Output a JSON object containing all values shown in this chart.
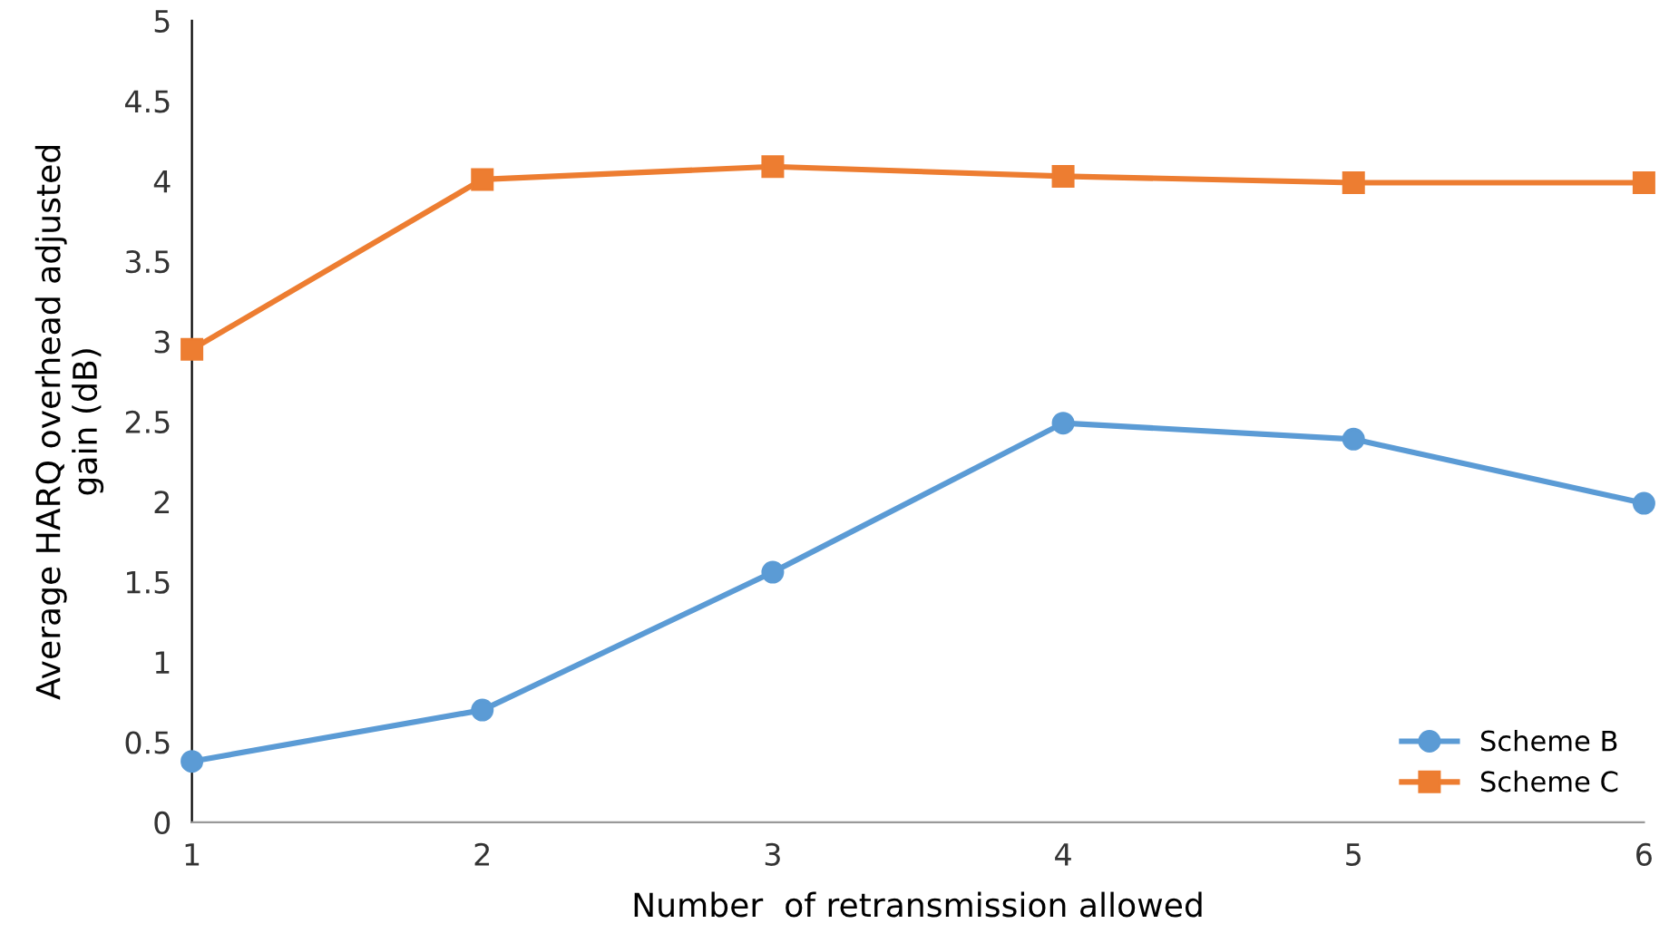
{
  "chart_data": {
    "type": "line",
    "xlabel": "Number  of retransmission allowed",
    "ylabel": "Average HARQ overhead adjusted\ngain (dB)",
    "x": [
      1,
      2,
      3,
      4,
      5,
      6
    ],
    "series": [
      {
        "name": "Scheme B",
        "color": "#5b9bd5",
        "marker": "circle",
        "values": [
          0.38,
          0.7,
          1.56,
          2.49,
          2.39,
          1.99
        ]
      },
      {
        "name": "Scheme C",
        "color": "#ed7d31",
        "marker": "square",
        "values": [
          2.95,
          4.01,
          4.09,
          4.03,
          3.99,
          3.99
        ]
      }
    ],
    "xlim": [
      1,
      6
    ],
    "xticks": [
      1,
      2,
      3,
      4,
      5,
      6
    ],
    "ylim": [
      0,
      5
    ],
    "yticks": [
      0,
      0.5,
      1,
      1.5,
      2,
      2.5,
      3,
      3.5,
      4,
      4.5,
      5
    ],
    "grid": false,
    "legend": "bottom right"
  }
}
